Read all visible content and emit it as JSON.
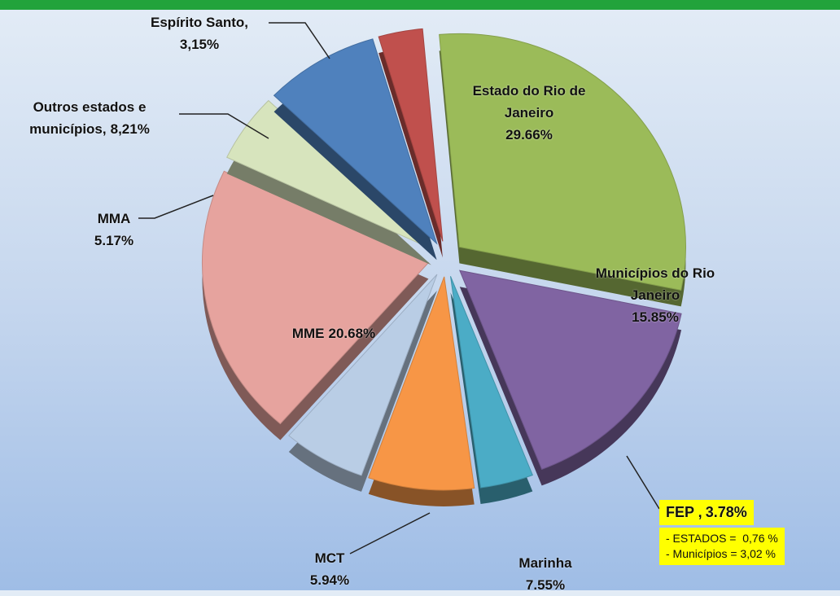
{
  "chart_data": {
    "type": "pie",
    "categories": [
      "Estado do Rio de Janeiro",
      "Municípios do Rio Janeiro",
      "FEP ,",
      "Marinha",
      "MCT",
      "MME",
      "MMA",
      "Outros estados e municípios,",
      "Espírito Santo,"
    ],
    "values": [
      29.66,
      15.85,
      3.78,
      7.55,
      5.94,
      20.68,
      5.17,
      8.21,
      3.15
    ],
    "value_labels": [
      "29.66%",
      "15.85%",
      "3.78%",
      "7.55%",
      "5.94%",
      "20.68%",
      "5.17%",
      "8,21%",
      "3,15%"
    ],
    "colors": [
      "#9bbb59",
      "#8064a2",
      "#4bacc6",
      "#f79646",
      "#b9cde5",
      "#e6a39e",
      "#d7e4bd",
      "#4f81bd",
      "#c0504d"
    ],
    "annotations": [
      "- ESTADOS =  0,76 %",
      "- Municípios = 3,02 %"
    ]
  }
}
